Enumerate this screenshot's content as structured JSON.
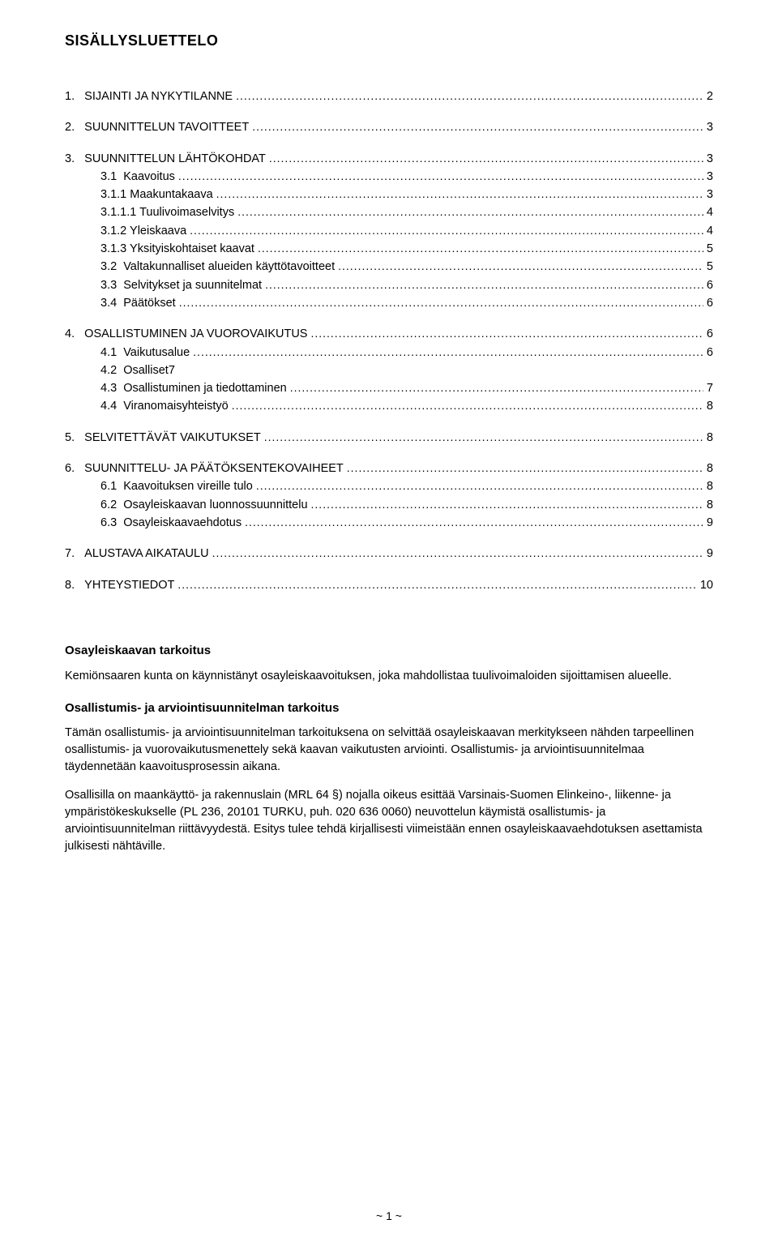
{
  "colors": {
    "background": "#ffffff",
    "text": "#000000"
  },
  "typography": {
    "font_family": "Arial, Helvetica, sans-serif",
    "title_size_pt": 14,
    "toc_size_pt": 11,
    "body_size_pt": 11
  },
  "title": "SISÄLLYSLUETTELO",
  "toc": [
    {
      "level": 1,
      "num": "1.",
      "text": "SIJAINTI JA NYKYTILANNE",
      "page": "2"
    },
    {
      "level": 1,
      "num": "2.",
      "text": "SUUNNITTELUN TAVOITTEET",
      "page": "3"
    },
    {
      "level": 1,
      "num": "3.",
      "text": "SUUNNITTELUN LÄHTÖKOHDAT",
      "page": "3"
    },
    {
      "level": 2,
      "num": "3.1",
      "text": "Kaavoitus",
      "page": "3"
    },
    {
      "level": 3,
      "num": "3.1.1",
      "text": "Maakuntakaava",
      "page": "3"
    },
    {
      "level": 3,
      "num": "3.1.1.1",
      "text": "Tuulivoimaselvitys",
      "page": "4"
    },
    {
      "level": 3,
      "num": "3.1.2",
      "text": "Yleiskaava",
      "page": "4"
    },
    {
      "level": 3,
      "num": "3.1.3",
      "text": "Yksityiskohtaiset kaavat",
      "page": "5"
    },
    {
      "level": 2,
      "num": "3.2",
      "text": "Valtakunnalliset alueiden käyttötavoitteet",
      "page": "5"
    },
    {
      "level": 2,
      "num": "3.3",
      "text": "Selvitykset ja suunnitelmat",
      "page": "6"
    },
    {
      "level": 2,
      "num": "3.4",
      "text": "Päätökset",
      "page": "6"
    },
    {
      "level": 1,
      "num": "4.",
      "text": "OSALLISTUMINEN JA VUOROVAIKUTUS",
      "page": "6"
    },
    {
      "level": 2,
      "num": "4.1",
      "text": "Vaikutusalue",
      "page": "6"
    },
    {
      "level": 2,
      "num": "4.2",
      "text": "Osalliset",
      "page": "7",
      "pageInline": true
    },
    {
      "level": 2,
      "num": "4.3",
      "text": "Osallistuminen ja tiedottaminen",
      "page": "7"
    },
    {
      "level": 2,
      "num": "4.4",
      "text": "Viranomaisyhteistyö",
      "page": "8"
    },
    {
      "level": 1,
      "num": "5.",
      "text": "SELVITETTÄVÄT VAIKUTUKSET",
      "page": "8"
    },
    {
      "level": 1,
      "num": "6.",
      "text": "SUUNNITTELU- JA PÄÄTÖKSENTEKOVAIHEET",
      "page": "8"
    },
    {
      "level": 2,
      "num": "6.1",
      "text": "Kaavoituksen vireille tulo",
      "page": "8"
    },
    {
      "level": 2,
      "num": "6.2",
      "text": "Osayleiskaavan luonnossuunnittelu",
      "page": "8"
    },
    {
      "level": 2,
      "num": "6.3",
      "text": "Osayleiskaavaehdotus",
      "page": "9"
    },
    {
      "level": 1,
      "num": "7.",
      "text": "ALUSTAVA AIKATAULU",
      "page": "9"
    },
    {
      "level": 1,
      "num": "8.",
      "text": "YHTEYSTIEDOT",
      "page": "10"
    }
  ],
  "sections": [
    {
      "heading": "Osayleiskaavan tarkoitus",
      "paragraphs": [
        "Kemiönsaaren kunta on käynnistänyt osayleiskaavoituksen, joka mahdollistaa tuulivoimaloiden sijoittamisen alueelle."
      ]
    },
    {
      "heading": "Osallistumis- ja arviointisuunnitelman tarkoitus",
      "paragraphs": [
        "Tämän osallistumis- ja arviointisuunnitelman tarkoituksena on selvittää osayleiskaavan merkitykseen nähden tarpeellinen osallistumis- ja vuorovaikutusmenettely sekä kaavan vaikutusten arviointi. Osallistumis- ja arviointisuunnitelmaa täydennetään kaavoitusprosessin aikana.",
        "Osallisilla on maankäyttö- ja rakennuslain (MRL 64 §) nojalla oikeus esittää Varsinais-Suomen Elinkeino-, liikenne- ja ympäristökeskukselle (PL 236, 20101 TURKU, puh. 020 636 0060) neuvottelun käymistä osallistumis- ja arviointisuunnitelman riittävyydestä. Esitys tulee tehdä kirjallisesti viimeistään ennen osayleiskaavaehdotuksen asettamista julkisesti nähtäville."
      ]
    }
  ],
  "pageNumber": "~ 1 ~"
}
